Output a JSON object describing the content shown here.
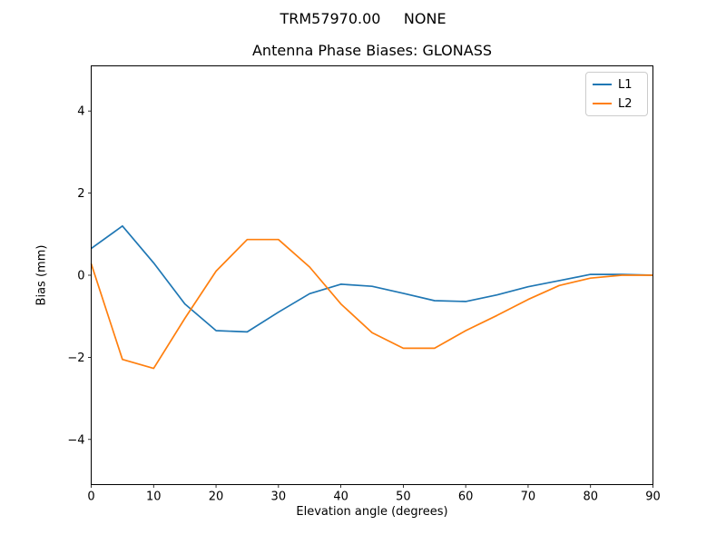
{
  "figure": {
    "suptitle": "TRM57970.00     NONE",
    "axes_title": "Antenna Phase Biases: GLONASS",
    "xlabel": "Elevation angle (degrees)",
    "ylabel": "Bias (mm)"
  },
  "legend": {
    "position": "upper right",
    "items": [
      {
        "label": "L1",
        "color": "#1f77b4"
      },
      {
        "label": "L2",
        "color": "#ff7f0e"
      }
    ]
  },
  "chart_data": {
    "type": "line",
    "title": "Antenna Phase Biases: GLONASS",
    "xlabel": "Elevation angle (degrees)",
    "ylabel": "Bias (mm)",
    "x": [
      0,
      5,
      10,
      15,
      20,
      25,
      30,
      35,
      40,
      45,
      50,
      55,
      60,
      65,
      70,
      75,
      80,
      85,
      90
    ],
    "series": [
      {
        "name": "L1",
        "color": "#1f77b4",
        "values": [
          0.65,
          1.2,
          0.3,
          -0.7,
          -1.35,
          -1.38,
          -0.9,
          -0.45,
          -0.22,
          -0.27,
          -0.44,
          -0.62,
          -0.64,
          -0.48,
          -0.28,
          -0.13,
          0.02,
          0.02,
          0.0
        ]
      },
      {
        "name": "L2",
        "color": "#ff7f0e",
        "values": [
          0.28,
          -2.05,
          -2.27,
          -1.05,
          0.1,
          0.87,
          0.87,
          0.2,
          -0.7,
          -1.4,
          -1.78,
          -1.78,
          -1.35,
          -0.98,
          -0.59,
          -0.25,
          -0.07,
          0.0,
          0.0
        ]
      }
    ],
    "xlim": [
      0,
      90
    ],
    "ylim": [
      -5.1,
      5.1
    ],
    "xticks": [
      0,
      10,
      20,
      30,
      40,
      50,
      60,
      70,
      80,
      90
    ],
    "yticks": {
      "values": [
        -4,
        -2,
        0,
        2,
        4
      ],
      "labels": [
        "−4",
        "−2",
        "0",
        "2",
        "4"
      ]
    },
    "grid": false,
    "legend_position": "upper right",
    "line_width": 1.7,
    "axes_color": "#000000",
    "background_color": "#ffffff"
  }
}
